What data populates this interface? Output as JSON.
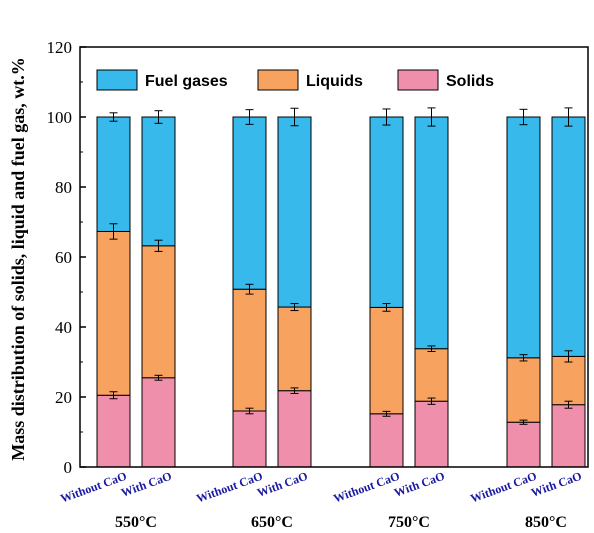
{
  "chart_data": {
    "type": "bar",
    "stacked": true,
    "ylabel": "Mass distribution of solids, liquid and fuel gas, wt.%",
    "ylim": [
      0,
      120
    ],
    "yticks": [
      0,
      20,
      40,
      60,
      80,
      100,
      120
    ],
    "groups": [
      "550°C",
      "650°C",
      "750°C",
      "850°C"
    ],
    "categories": [
      "Without CaO",
      "With CaO",
      "Without CaO",
      "With CaO",
      "Without CaO",
      "With CaO",
      "Without CaO",
      "With CaO"
    ],
    "group_index": [
      0,
      0,
      1,
      1,
      2,
      2,
      3,
      3
    ],
    "series": [
      {
        "name": "Solids",
        "color": "#f08fab",
        "values": [
          20.5,
          25.5,
          16.0,
          21.8,
          15.2,
          18.8,
          12.8,
          17.8
        ],
        "errors": [
          1.0,
          0.7,
          0.8,
          0.8,
          0.7,
          0.9,
          0.6,
          1.0
        ]
      },
      {
        "name": "Liquids",
        "color": "#f8a25f",
        "values": [
          46.8,
          37.7,
          34.8,
          23.9,
          30.4,
          15.0,
          18.4,
          13.8
        ],
        "errors": [
          2.2,
          1.6,
          1.4,
          1.0,
          1.1,
          0.8,
          0.9,
          1.6
        ]
      },
      {
        "name": "Fuel gases",
        "color": "#38b9ec",
        "values": [
          32.7,
          36.8,
          49.2,
          54.3,
          54.4,
          66.2,
          68.8,
          68.4
        ],
        "errors": [
          1.2,
          1.8,
          2.1,
          2.5,
          2.3,
          2.6,
          2.2,
          2.6
        ]
      }
    ],
    "legend": [
      "Fuel gases",
      "Liquids",
      "Solids"
    ],
    "legend_position": "top",
    "grid": false
  }
}
